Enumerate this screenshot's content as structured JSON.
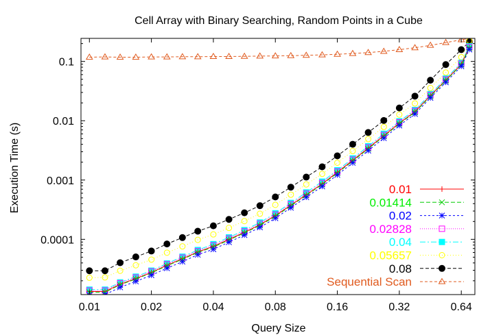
{
  "chart_data": {
    "type": "line",
    "title": "Cell Array with Binary Searching, Random Points in a Cube",
    "xlabel": "Query Size",
    "ylabel": "Execution Time (s)",
    "xscale": "log",
    "yscale": "log",
    "xlim": [
      0.0091,
      0.745
    ],
    "ylim": [
      1.17e-05,
      0.245
    ],
    "xticks": [
      {
        "value": 0.01,
        "label": "0.01"
      },
      {
        "value": 0.02,
        "label": "0.02"
      },
      {
        "value": 0.04,
        "label": "0.04"
      },
      {
        "value": 0.08,
        "label": "0.08"
      },
      {
        "value": 0.16,
        "label": "0.16"
      },
      {
        "value": 0.32,
        "label": "0.32"
      },
      {
        "value": 0.64,
        "label": "0.64"
      }
    ],
    "yticks": [
      {
        "value": 0.0001,
        "label": "0.0001"
      },
      {
        "value": 0.001,
        "label": "0.001"
      },
      {
        "value": 0.01,
        "label": "0.01"
      },
      {
        "value": 0.1,
        "label": "0.1"
      }
    ],
    "grid": false,
    "legend_position": "bottom-right",
    "x": [
      0.01,
      0.0119,
      0.0141,
      0.0168,
      0.02,
      0.0238,
      0.0283,
      0.0336,
      0.04,
      0.0476,
      0.0566,
      0.0673,
      0.08,
      0.0951,
      0.113,
      0.135,
      0.16,
      0.19,
      0.226,
      0.269,
      0.32,
      0.381,
      0.453,
      0.538,
      0.64,
      0.7
    ],
    "series": [
      {
        "name": "0.01",
        "color": "#ff0000",
        "marker": "plus",
        "dash": "solid",
        "values": [
          1.32e-05,
          1.32e-05,
          1.75e-05,
          2.18e-05,
          2.76e-05,
          3.65e-05,
          4.7e-05,
          6.1e-05,
          7.6e-05,
          9.95e-05,
          0.000131,
          0.000176,
          0.000251,
          0.000376,
          0.000565,
          0.00086,
          0.00135,
          0.00215,
          0.00345,
          0.00559,
          0.0091,
          0.0142,
          0.0265,
          0.0484,
          0.0895,
          0.171
        ]
      },
      {
        "name": "0.01414",
        "color": "#00cc00",
        "marker": "x",
        "dash": "6,3",
        "values": [
          1.28e-05,
          1.28e-05,
          1.71e-05,
          2.14e-05,
          2.71e-05,
          3.58e-05,
          4.6e-05,
          6e-05,
          7.4e-05,
          9.75e-05,
          0.000128,
          0.000172,
          0.000245,
          0.000367,
          0.000551,
          0.00084,
          0.00131,
          0.00209,
          0.00336,
          0.00545,
          0.0089,
          0.0139,
          0.0259,
          0.0474,
          0.0878,
          0.168
        ]
      },
      {
        "name": "0.02",
        "color": "#0000ff",
        "marker": "star",
        "dash": "3,3",
        "values": [
          1.15e-05,
          1.17e-05,
          1.55e-05,
          1.95e-05,
          2.48e-05,
          3.26e-05,
          4.2e-05,
          5.5e-05,
          6.8e-05,
          8.95e-05,
          0.000118,
          0.000159,
          0.000227,
          0.000341,
          0.000512,
          0.00078,
          0.00122,
          0.00195,
          0.00313,
          0.00508,
          0.0083,
          0.013,
          0.0243,
          0.0445,
          0.0828,
          0.159
        ]
      },
      {
        "name": "0.02828",
        "color": "#ff00ff",
        "marker": "square",
        "dash": "1,2",
        "values": [
          1.37e-05,
          1.37e-05,
          1.82e-05,
          2.27e-05,
          2.87e-05,
          3.79e-05,
          4.9e-05,
          6.3e-05,
          7.9e-05,
          0.000103,
          0.000136,
          0.000183,
          0.000261,
          0.000391,
          0.000587,
          0.00089,
          0.00139,
          0.00221,
          0.00355,
          0.00575,
          0.0094,
          0.0146,
          0.0271,
          0.0495,
          0.0914,
          0.174
        ]
      },
      {
        "name": "0.04",
        "color": "#00ffff",
        "marker": "filled-square",
        "dash": "8,3,2,3",
        "values": [
          1.42e-05,
          1.42e-05,
          1.88e-05,
          2.35e-05,
          2.97e-05,
          3.92e-05,
          5.1e-05,
          6.6e-05,
          8.3e-05,
          0.000108,
          0.000143,
          0.000192,
          0.000275,
          0.000411,
          0.000617,
          0.00094,
          0.00146,
          0.00232,
          0.00372,
          0.00602,
          0.0098,
          0.0152,
          0.0282,
          0.0515,
          0.095,
          0.18
        ]
      },
      {
        "name": "0.05657",
        "color": "#ffff00",
        "marker": "circle",
        "dash": "1,3",
        "values": [
          2.25e-05,
          2.28e-05,
          2.95e-05,
          3.65e-05,
          4.55e-05,
          5.95e-05,
          7.6e-05,
          9.8e-05,
          0.000121,
          0.000156,
          0.000203,
          0.00027,
          0.000382,
          0.000566,
          0.000843,
          0.00127,
          0.00196,
          0.00309,
          0.0049,
          0.00786,
          0.0127,
          0.0196,
          0.0357,
          0.0649,
          0.118,
          0.222
        ]
      },
      {
        "name": "0.08",
        "color": "#000000",
        "marker": "filled-circle",
        "dash": "5,3",
        "values": [
          2.95e-05,
          2.95e-05,
          4.03e-05,
          5.05e-05,
          6.35e-05,
          8.35e-05,
          0.000107,
          0.000137,
          0.000169,
          0.000217,
          0.00028,
          0.000369,
          0.000518,
          0.000757,
          0.00112,
          0.00167,
          0.00256,
          0.00401,
          0.00633,
          0.0101,
          0.0164,
          0.026,
          0.0482,
          0.0886,
          0.158,
          0.215
        ]
      },
      {
        "name": "Sequential Scan",
        "color": "#e05a1e",
        "marker": "triangle",
        "dash": "4,3",
        "values": [
          0.118,
          0.119,
          0.118,
          0.118,
          0.119,
          0.119,
          0.12,
          0.12,
          0.121,
          0.121,
          0.122,
          0.123,
          0.124,
          0.125,
          0.127,
          0.129,
          0.132,
          0.136,
          0.141,
          0.148,
          0.158,
          0.17,
          0.187,
          0.208,
          0.232,
          0.244
        ]
      }
    ]
  }
}
